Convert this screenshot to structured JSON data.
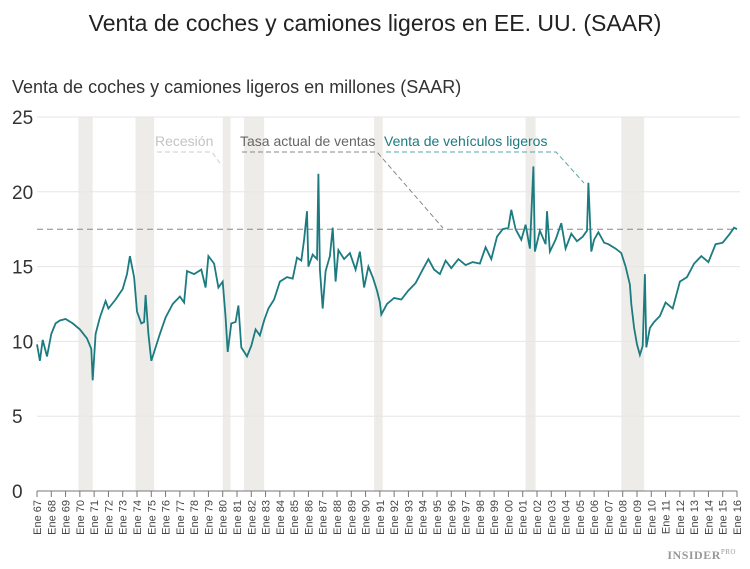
{
  "chart_data": {
    "type": "line",
    "title": "Venta de coches y camiones ligeros en EE. UU. (SAAR)",
    "ylabel": "Venta de coches y camiones ligeros en millones (SAAR)",
    "ylim": [
      0,
      25
    ],
    "yticks": [
      0,
      5,
      10,
      15,
      20,
      25
    ],
    "xlim": [
      1967,
      2016
    ],
    "xticks": [
      "Ene 67",
      "Ene 68",
      "Ene 69",
      "Ene 70",
      "Ene 71",
      "Ene 72",
      "Ene 73",
      "Ene 74",
      "Ene 75",
      "Ene 76",
      "Ene 77",
      "Ene 78",
      "Ene 79",
      "Ene 80",
      "Ene 81",
      "Ene 82",
      "Ene 83",
      "Ene 84",
      "Ene 85",
      "Ene 86",
      "Ene 87",
      "Ene 88",
      "Ene 89",
      "Ene 90",
      "Ene 91",
      "Ene 92",
      "Ene 93",
      "Ene 94",
      "Ene 95",
      "Ene 96",
      "Ene 97",
      "Ene 98",
      "Ene 99",
      "Ene 00",
      "Ene 01",
      "Ene 02",
      "Ene 03",
      "Ene 04",
      "Ene 05",
      "Ene 06",
      "Ene 07",
      "Ene 08",
      "Ene 09",
      "Ene 10",
      "Ene 11",
      "Ene 12",
      "Ene 13",
      "Ene 14",
      "Ene 15",
      "Ene 16"
    ],
    "grid": true,
    "current_rate": 17.5,
    "recessions": [
      [
        1969.9,
        1970.9
      ],
      [
        1973.9,
        1975.2
      ],
      [
        1980.0,
        1980.55
      ],
      [
        1981.5,
        1982.9
      ],
      [
        1990.6,
        1991.2
      ],
      [
        2001.2,
        2001.9
      ],
      [
        2007.9,
        2009.5
      ]
    ],
    "legend": {
      "recession": "Recesión",
      "current_rate": "Tasa actual de ventas",
      "series": "Venta de vehículos ligeros"
    },
    "colors": {
      "series": "#1b7b80",
      "recession": "#eeece8",
      "current_rate": "#888888"
    },
    "series": [
      {
        "name": "Venta de vehículos ligeros",
        "x": [
          1967.0,
          1967.2,
          1967.4,
          1967.7,
          1968.0,
          1968.3,
          1968.6,
          1969.0,
          1969.5,
          1970.0,
          1970.5,
          1970.8,
          1970.9,
          1971.1,
          1971.4,
          1971.8,
          1972.0,
          1972.5,
          1973.0,
          1973.3,
          1973.5,
          1973.8,
          1974.0,
          1974.3,
          1974.5,
          1974.6,
          1974.8,
          1975.0,
          1975.3,
          1975.6,
          1976.0,
          1976.5,
          1977.0,
          1977.3,
          1977.5,
          1978.0,
          1978.5,
          1978.8,
          1979.0,
          1979.4,
          1979.7,
          1980.0,
          1980.2,
          1980.35,
          1980.6,
          1980.9,
          1981.1,
          1981.3,
          1981.7,
          1982.0,
          1982.3,
          1982.6,
          1982.9,
          1983.2,
          1983.6,
          1984.0,
          1984.5,
          1984.9,
          1985.2,
          1985.5,
          1985.7,
          1985.9,
          1986.0,
          1986.3,
          1986.6,
          1986.7,
          1986.8,
          1987.0,
          1987.2,
          1987.5,
          1987.7,
          1987.9,
          1988.1,
          1988.5,
          1988.9,
          1989.3,
          1989.6,
          1989.9,
          1990.2,
          1990.5,
          1990.8,
          1991.0,
          1991.1,
          1991.5,
          1992.0,
          1992.5,
          1993.0,
          1993.5,
          1994.0,
          1994.4,
          1994.8,
          1995.2,
          1995.6,
          1996.0,
          1996.5,
          1997.0,
          1997.5,
          1998.0,
          1998.4,
          1998.8,
          1999.2,
          1999.6,
          2000.0,
          2000.2,
          2000.5,
          2000.9,
          2001.2,
          2001.5,
          2001.75,
          2001.85,
          2002.2,
          2002.6,
          2002.7,
          2002.9,
          2003.3,
          2003.7,
          2004.0,
          2004.4,
          2004.8,
          2005.2,
          2005.5,
          2005.6,
          2005.8,
          2006.0,
          2006.3,
          2006.7,
          2007.0,
          2007.5,
          2007.9,
          2008.2,
          2008.5,
          2008.6,
          2008.8,
          2009.0,
          2009.2,
          2009.4,
          2009.55,
          2009.65,
          2009.9,
          2010.2,
          2010.6,
          2011.0,
          2011.5,
          2012.0,
          2012.5,
          2013.0,
          2013.5,
          2014.0,
          2014.5,
          2015.0,
          2015.5,
          2015.8,
          2016.0
        ],
        "values": [
          9.8,
          8.7,
          10.1,
          9.0,
          10.5,
          11.2,
          11.4,
          11.5,
          11.2,
          10.8,
          10.2,
          9.5,
          7.4,
          10.5,
          11.6,
          12.7,
          12.2,
          12.8,
          13.5,
          14.5,
          15.7,
          14.3,
          12.0,
          11.2,
          11.3,
          13.1,
          10.5,
          8.7,
          9.6,
          10.5,
          11.6,
          12.5,
          13.0,
          12.6,
          14.7,
          14.5,
          14.8,
          13.6,
          15.7,
          15.2,
          13.6,
          14.0,
          11.6,
          9.3,
          11.2,
          11.3,
          12.4,
          9.6,
          9.0,
          9.7,
          10.8,
          10.4,
          11.4,
          12.2,
          12.8,
          14.0,
          14.3,
          14.2,
          15.6,
          15.4,
          16.8,
          18.7,
          15.0,
          15.8,
          15.5,
          21.2,
          14.8,
          12.2,
          14.7,
          15.7,
          17.6,
          14.0,
          16.1,
          15.5,
          15.9,
          14.8,
          16.0,
          13.6,
          15.0,
          14.3,
          13.4,
          12.6,
          11.8,
          12.5,
          12.9,
          12.8,
          13.4,
          13.9,
          14.8,
          15.5,
          14.8,
          14.5,
          15.4,
          14.9,
          15.5,
          15.1,
          15.3,
          15.2,
          16.3,
          15.5,
          17.0,
          17.5,
          17.6,
          18.8,
          17.5,
          16.8,
          17.8,
          16.2,
          21.7,
          16.0,
          17.4,
          16.5,
          18.7,
          16.0,
          16.8,
          17.9,
          16.2,
          17.2,
          16.7,
          17.0,
          17.4,
          20.6,
          16.0,
          16.8,
          17.3,
          16.6,
          16.5,
          16.2,
          15.9,
          15.0,
          13.8,
          12.5,
          10.9,
          9.8,
          9.1,
          9.7,
          14.5,
          9.6,
          10.9,
          11.3,
          11.7,
          12.6,
          12.2,
          14.0,
          14.3,
          15.2,
          15.7,
          15.3,
          16.5,
          16.6,
          17.2,
          17.6,
          17.5
        ]
      }
    ]
  },
  "footer": {
    "logo": "INSIDER",
    "logo_sub": "PRO"
  }
}
